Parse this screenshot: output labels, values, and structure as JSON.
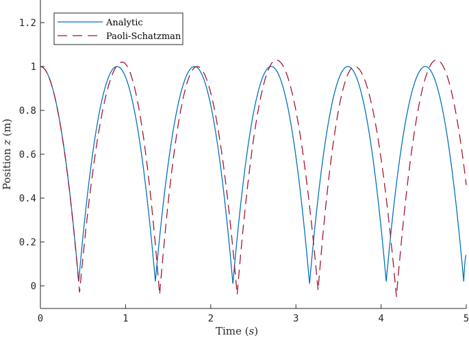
{
  "chart_data": {
    "type": "line",
    "title": "",
    "xlabel": "Time (s)",
    "xlabel_parts": {
      "text": "Time ",
      "unit": "(s)"
    },
    "ylabel": "Position z (m)",
    "ylabel_parts": {
      "text": "Position ",
      "var": "z",
      "unit": "(m)"
    },
    "xlim": [
      0,
      5
    ],
    "ylim": [
      -0.1,
      1.33
    ],
    "xticks": [
      0,
      1,
      2,
      3,
      4,
      5
    ],
    "xtick_labels": [
      "0",
      "1",
      "2",
      "3",
      "4",
      "5"
    ],
    "yticks": [
      0,
      0.2,
      0.4,
      0.6,
      0.8,
      1,
      1.2
    ],
    "ytick_labels": [
      "0",
      "0.2",
      "0.4",
      "0.6",
      "0.8",
      "1",
      "1.2"
    ],
    "grid": false,
    "legend_position": "upper left",
    "series": [
      {
        "name": "Analytic",
        "color": "#0072BD",
        "style": "solid",
        "start": [
          0,
          1.0
        ],
        "minima": [
          [
            0.45,
            0.02
          ],
          [
            1.35,
            0.02
          ],
          [
            2.26,
            0.01
          ],
          [
            3.16,
            0.01
          ],
          [
            4.06,
            0.02
          ],
          [
            4.97,
            0.02
          ]
        ],
        "peaks": [
          [
            0.9,
            1.0
          ],
          [
            1.81,
            1.0
          ],
          [
            2.71,
            1.0
          ],
          [
            3.61,
            1.0
          ],
          [
            4.52,
            1.0
          ]
        ],
        "end": [
          5.0,
          0.14
        ]
      },
      {
        "name": "Paoli-Schatzman",
        "color": "#A2142F",
        "style": "dashed",
        "start": [
          0,
          1.0
        ],
        "minima": [
          [
            0.46,
            -0.03
          ],
          [
            1.4,
            -0.04
          ],
          [
            2.31,
            -0.04
          ],
          [
            3.26,
            -0.02
          ],
          [
            4.18,
            -0.05
          ]
        ],
        "peaks": [
          [
            0.96,
            1.02
          ],
          [
            1.84,
            1.0
          ],
          [
            2.77,
            1.03
          ],
          [
            3.69,
            1.0
          ],
          [
            4.65,
            1.03
          ]
        ],
        "end": [
          5.0,
          0.46
        ]
      }
    ]
  },
  "legend": {
    "items": [
      {
        "label": "Analytic",
        "color": "#0072BD",
        "style": "solid"
      },
      {
        "label": "Paoli-Schatzman",
        "color": "#A2142F",
        "style": "dashed"
      }
    ]
  }
}
